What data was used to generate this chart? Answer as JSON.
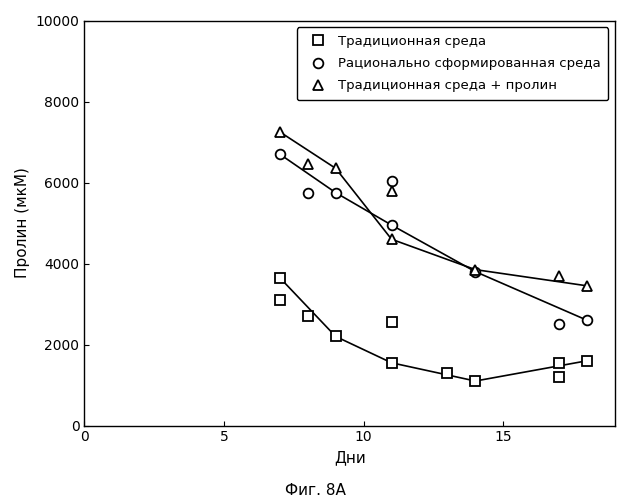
{
  "title": "",
  "xlabel": "Дни",
  "ylabel": "Пролин (мкМ)",
  "caption": "Фиг. 8А",
  "xlim": [
    0,
    19
  ],
  "ylim": [
    0,
    10000
  ],
  "xticks": [
    0,
    5,
    10,
    15
  ],
  "yticks": [
    0,
    2000,
    4000,
    6000,
    8000,
    10000
  ],
  "series": [
    {
      "label": "Традиционная среда",
      "marker": "s",
      "segments": [
        {
          "x": [
            7,
            7
          ],
          "y": [
            3650,
            3100
          ]
        },
        {
          "x": [
            8,
            9
          ],
          "y": [
            2700,
            2200
          ]
        },
        {
          "x": [
            11,
            11
          ],
          "y": [
            2550,
            1550
          ]
        },
        {
          "x": [
            13,
            14
          ],
          "y": [
            1300,
            1100
          ]
        },
        {
          "x": [
            17,
            17,
            18
          ],
          "y": [
            1550,
            1200,
            1600
          ]
        }
      ],
      "main_x": [
        7,
        9,
        11,
        14,
        18
      ],
      "main_y": [
        3650,
        2200,
        1550,
        1100,
        1600
      ]
    },
    {
      "label": "Рационально сформированная среда",
      "marker": "o",
      "segments": [
        {
          "x": [
            7
          ],
          "y": [
            6700
          ]
        },
        {
          "x": [
            8,
            9
          ],
          "y": [
            5750,
            5750
          ]
        },
        {
          "x": [
            11,
            11
          ],
          "y": [
            6050,
            4950
          ]
        },
        {
          "x": [
            14
          ],
          "y": [
            3800
          ]
        },
        {
          "x": [
            17,
            18
          ],
          "y": [
            2500,
            2600
          ]
        }
      ],
      "main_x": [
        7,
        9,
        11,
        14,
        18
      ],
      "main_y": [
        6700,
        5750,
        4950,
        3800,
        2600
      ]
    },
    {
      "label": "Традиционная среда + пролин",
      "marker": "^",
      "segments": [
        {
          "x": [
            7
          ],
          "y": [
            7250
          ]
        },
        {
          "x": [
            8,
            9
          ],
          "y": [
            6450,
            6350
          ]
        },
        {
          "x": [
            11,
            11
          ],
          "y": [
            5800,
            4600
          ]
        },
        {
          "x": [
            14
          ],
          "y": [
            3850
          ]
        },
        {
          "x": [
            17,
            18
          ],
          "y": [
            3700,
            3450
          ]
        }
      ],
      "main_x": [
        7,
        9,
        11,
        14,
        18
      ],
      "main_y": [
        7250,
        6350,
        4600,
        3850,
        3450
      ]
    }
  ],
  "all_x_points": {
    "trad": [
      7,
      7,
      8,
      9,
      11,
      11,
      13,
      14,
      17,
      17,
      18
    ],
    "rat": [
      7,
      8,
      9,
      11,
      11,
      14,
      17,
      18
    ],
    "trad_pro": [
      7,
      8,
      9,
      11,
      11,
      14,
      17,
      18
    ]
  },
  "all_y_points": {
    "trad": [
      3650,
      3100,
      2700,
      2200,
      2550,
      1550,
      1300,
      1100,
      1550,
      1200,
      1600
    ],
    "rat": [
      6700,
      5750,
      5750,
      6050,
      4950,
      3800,
      2500,
      2600
    ],
    "trad_pro": [
      7250,
      6450,
      6350,
      5800,
      4600,
      3850,
      3700,
      3450
    ]
  },
  "line_color": "#000000",
  "background_color": "#ffffff",
  "legend_fontsize": 9.5,
  "axis_fontsize": 11,
  "tick_fontsize": 10,
  "caption_fontsize": 11,
  "marker_size": 7,
  "line_width": 1.2
}
